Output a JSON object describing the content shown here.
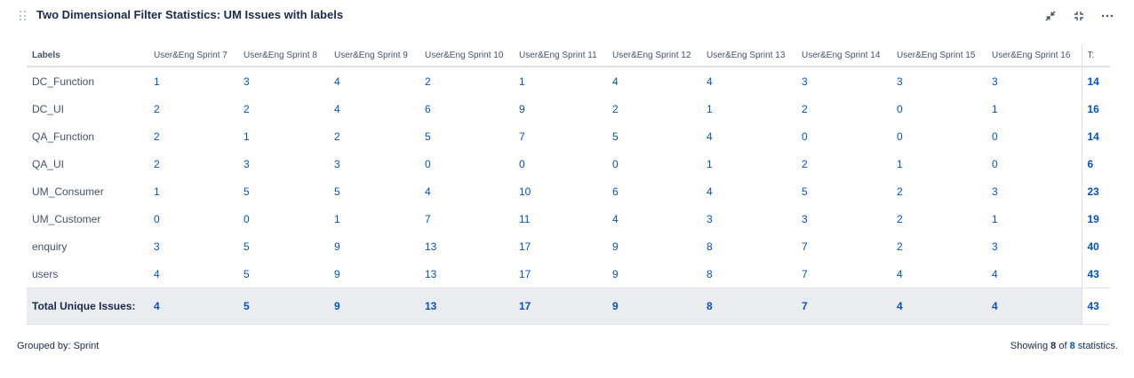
{
  "gadget": {
    "title": "Two Dimensional Filter Statistics: UM Issues with labels",
    "icons": {
      "drag": "drag-handle-icon",
      "minimize": "minimize-arrows-icon",
      "collapse": "collapse-icon",
      "more": "more-options-icon"
    },
    "more_label": "···"
  },
  "table": {
    "header": {
      "labels": "Labels",
      "columns": [
        "User&Eng Sprint 7",
        "User&Eng Sprint 8",
        "User&Eng Sprint 9",
        "User&Eng Sprint 10",
        "User&Eng Sprint 11",
        "User&Eng Sprint 12",
        "User&Eng Sprint 13",
        "User&Eng Sprint 14",
        "User&Eng Sprint 15",
        "User&Eng Sprint 16"
      ],
      "total": "T:"
    },
    "rows": [
      {
        "label": "DC_Function",
        "values": [
          "1",
          "3",
          "4",
          "2",
          "1",
          "4",
          "4",
          "3",
          "3",
          "3"
        ],
        "total": "14"
      },
      {
        "label": "DC_UI",
        "values": [
          "2",
          "2",
          "4",
          "6",
          "9",
          "2",
          "1",
          "2",
          "0",
          "1"
        ],
        "total": "16"
      },
      {
        "label": "QA_Function",
        "values": [
          "2",
          "1",
          "2",
          "5",
          "7",
          "5",
          "4",
          "0",
          "0",
          "0"
        ],
        "total": "14"
      },
      {
        "label": "QA_UI",
        "values": [
          "2",
          "3",
          "3",
          "0",
          "0",
          "0",
          "1",
          "2",
          "1",
          "0"
        ],
        "total": "6"
      },
      {
        "label": "UM_Consumer",
        "values": [
          "1",
          "5",
          "5",
          "4",
          "10",
          "6",
          "4",
          "5",
          "2",
          "3"
        ],
        "total": "23"
      },
      {
        "label": "UM_Customer",
        "values": [
          "0",
          "0",
          "1",
          "7",
          "11",
          "4",
          "3",
          "3",
          "2",
          "1"
        ],
        "total": "19"
      },
      {
        "label": "enquiry",
        "values": [
          "3",
          "5",
          "9",
          "13",
          "17",
          "9",
          "8",
          "7",
          "2",
          "3"
        ],
        "total": "40"
      },
      {
        "label": "users",
        "values": [
          "4",
          "5",
          "9",
          "13",
          "17",
          "9",
          "8",
          "7",
          "4",
          "4"
        ],
        "total": "43"
      }
    ],
    "footer": {
      "label": "Total Unique Issues:",
      "values": [
        "4",
        "5",
        "9",
        "13",
        "17",
        "9",
        "8",
        "7",
        "4",
        "4"
      ],
      "total": "43"
    }
  },
  "footer": {
    "grouped_by": "Grouped by: Sprint",
    "showing_prefix": "Showing ",
    "showing_count": "8",
    "showing_of": " of ",
    "showing_total": "8",
    "showing_suffix": " statistics."
  }
}
